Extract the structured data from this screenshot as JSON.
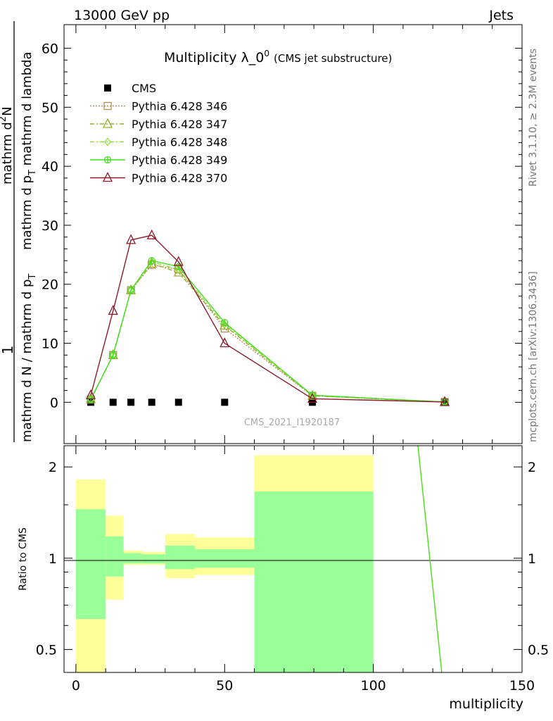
{
  "header": {
    "energy": "13000 GeV pp",
    "category": "Jets"
  },
  "side_labels": {
    "rivet": "Rivet 3.1.10, ≥ 2.3M events",
    "mcplots": "mcplots.cern.ch [arXiv:1306.3436]"
  },
  "chart_data": [
    {
      "type": "line",
      "title_main": "Multiplicity λ_0",
      "title_sup": "0",
      "title_suffix": "(CMS jet substructure)",
      "analysis_tag": "CMS_2021_I1920187",
      "ylabel_one": "1",
      "ylabel_den": "mathrm d N / mathrm d p",
      "ylabel_den_sub": "T",
      "ylabel_num": "mathrm d",
      "ylabel_num_sup": "2",
      "ylabel_num_rest": "N",
      "ylabel_num2": "mathrm d p",
      "ylabel_num2_sub": "T",
      "ylabel_num2_rest": " mathrm d lambda",
      "xlim": [
        -4,
        150
      ],
      "ylim": [
        -7,
        64
      ],
      "yticks": [
        "0",
        "10",
        "20",
        "30",
        "40",
        "50",
        "60"
      ],
      "series": [
        {
          "name": "CMS",
          "color": "#000000",
          "x": [
            5,
            12.5,
            18.5,
            25.5,
            34.5,
            50,
            79.5,
            124
          ],
          "y": [
            0,
            0,
            0,
            0,
            0,
            0,
            0,
            0
          ]
        },
        {
          "name": "Pythia 6.428 346",
          "color": "#b5915a",
          "x": [
            5,
            12.5,
            18.5,
            25.5,
            34.5,
            50,
            79.5,
            124
          ],
          "y": [
            0.5,
            8,
            19,
            23.3,
            22.5,
            12.5,
            1.1,
            0.05
          ]
        },
        {
          "name": "Pythia 6.428 347",
          "color": "#9aad2a",
          "x": [
            5,
            12.5,
            18.5,
            25.5,
            34.5,
            50,
            79.5,
            124
          ],
          "y": [
            0.5,
            8,
            19,
            23.5,
            22,
            13,
            1.1,
            0.05
          ]
        },
        {
          "name": "Pythia 6.428 348",
          "color": "#8fdc3a",
          "x": [
            5,
            12.5,
            18.5,
            25.5,
            34.5,
            50,
            79.5,
            124
          ],
          "y": [
            0.5,
            8,
            19,
            23.8,
            22.5,
            13.2,
            1.2,
            0.05
          ]
        },
        {
          "name": "Pythia 6.428 349",
          "color": "#44dd22",
          "x": [
            5,
            12.5,
            18.5,
            25.5,
            34.5,
            50,
            79.5,
            124
          ],
          "y": [
            0.5,
            8,
            19,
            24,
            23,
            13.5,
            1.2,
            0.05
          ]
        },
        {
          "name": "Pythia 6.428 370",
          "color": "#8b1a2a",
          "x": [
            5,
            12.5,
            18.5,
            25.5,
            34.5,
            50,
            79.5,
            124
          ],
          "y": [
            1.2,
            15.5,
            27.5,
            28.3,
            23.8,
            10,
            0.6,
            0.05
          ]
        }
      ]
    },
    {
      "type": "area",
      "ylabel": "Ratio to CMS",
      "xlabel": "multiplicity",
      "scale": "log",
      "ylim": [
        0.42,
        2.35
      ],
      "yticks": [
        "0.5",
        "1",
        "2"
      ],
      "xticks": [
        "0",
        "50",
        "100",
        "150"
      ],
      "bands": [
        {
          "x": [
            0,
            10
          ],
          "yellow": [
            0.35,
            1.82
          ],
          "green": [
            0.63,
            1.45
          ]
        },
        {
          "x": [
            10,
            16
          ],
          "yellow": [
            0.73,
            1.38
          ],
          "green": [
            0.87,
            1.18
          ]
        },
        {
          "x": [
            16,
            22
          ],
          "yellow": [
            0.95,
            1.06
          ],
          "green": [
            0.96,
            1.04
          ]
        },
        {
          "x": [
            22,
            30
          ],
          "yellow": [
            0.95,
            1.05
          ],
          "green": [
            0.96,
            1.03
          ]
        },
        {
          "x": [
            30,
            40
          ],
          "yellow": [
            0.86,
            1.2
          ],
          "green": [
            0.92,
            1.1
          ]
        },
        {
          "x": [
            40,
            60
          ],
          "yellow": [
            0.88,
            1.17
          ],
          "green": [
            0.93,
            1.07
          ]
        },
        {
          "x": [
            60,
            100
          ],
          "yellow": [
            0.35,
            2.18
          ],
          "green": [
            0.35,
            1.66
          ]
        }
      ],
      "ratio_line": {
        "color": "#55dd22",
        "x": [
          115,
          123
        ],
        "y": [
          2.4,
          0.42
        ]
      }
    }
  ]
}
